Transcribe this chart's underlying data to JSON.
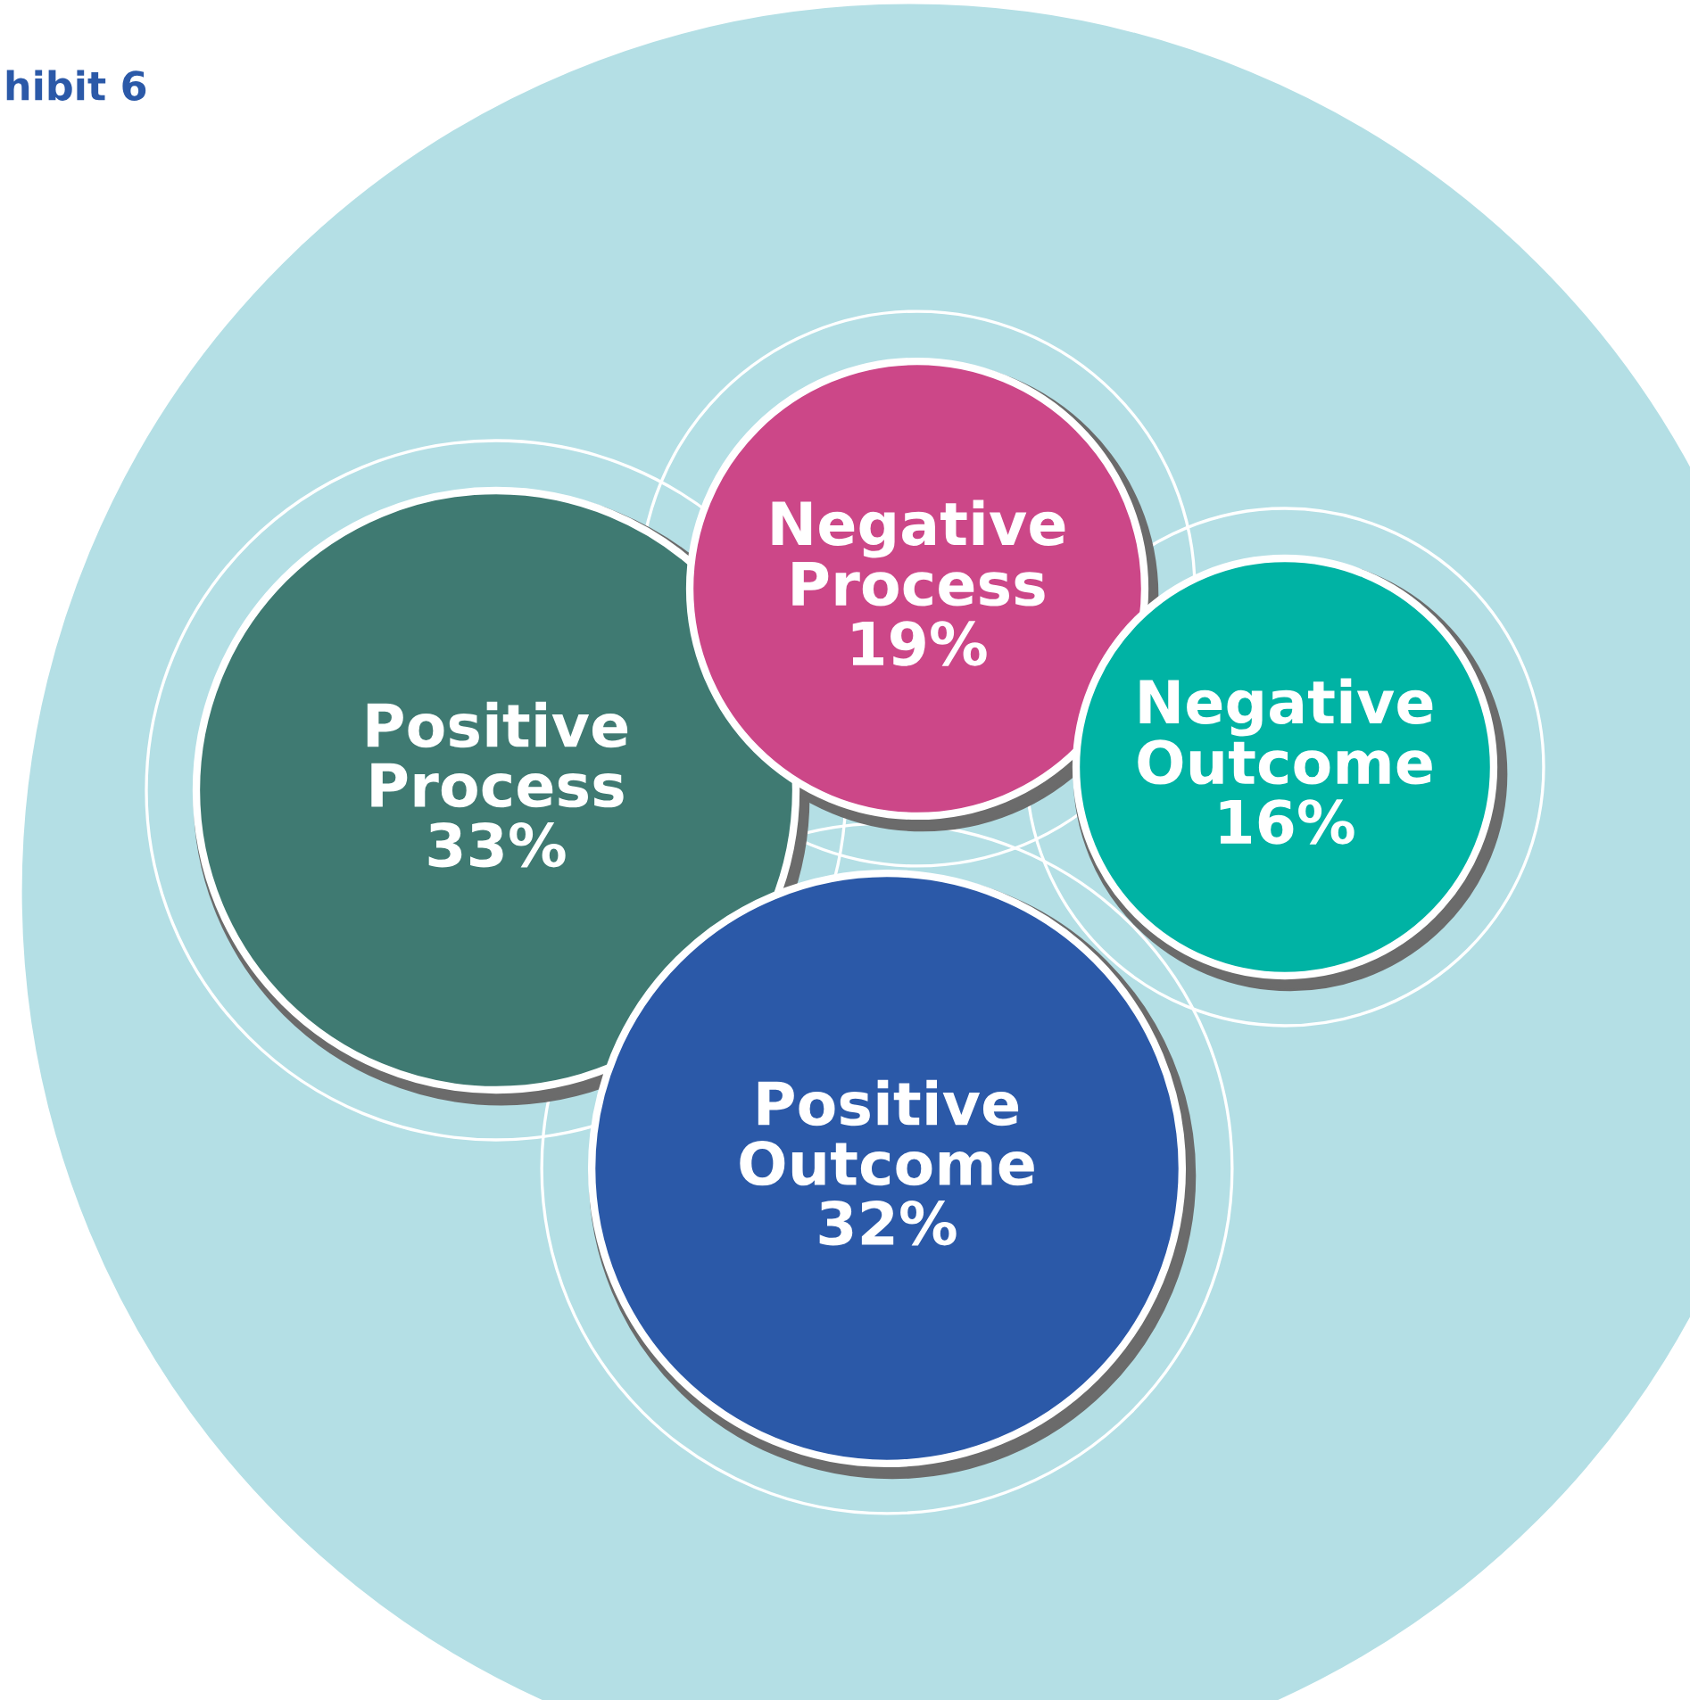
{
  "chart_data": {
    "type": "other",
    "title": "hibit 6",
    "categories": [
      "Positive Process",
      "Negative Process",
      "Negative Outcome",
      "Positive Outcome"
    ],
    "values": [
      33,
      19,
      16,
      32
    ],
    "value_labels": [
      "33%",
      "19%",
      "16%",
      "32%"
    ],
    "colors": [
      "#3f7a72",
      "#cc4788",
      "#00b3a4",
      "#2b59a8"
    ]
  }
}
